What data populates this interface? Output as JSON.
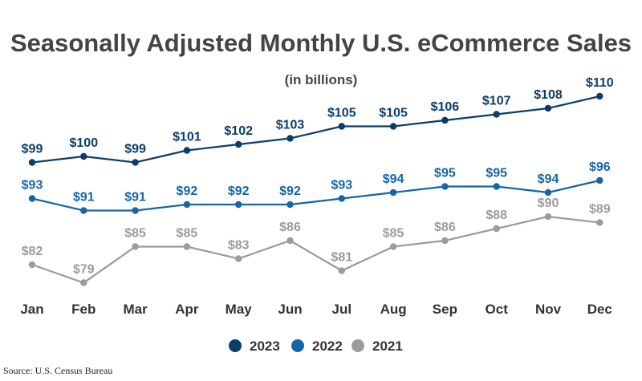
{
  "chart_data": {
    "type": "line",
    "title": "Seasonally Adjusted Monthly U.S. eCommerce Sales",
    "subtitle": "(in billions)",
    "categories": [
      "Jan",
      "Feb",
      "Mar",
      "Apr",
      "May",
      "Jun",
      "Jul",
      "Aug",
      "Sep",
      "Oct",
      "Nov",
      "Dec"
    ],
    "ylim": [
      74,
      114
    ],
    "grid": false,
    "legend_position": "bottom",
    "series": [
      {
        "name": "2023",
        "color": "#0b3d6b",
        "values": [
          99,
          100,
          99,
          101,
          102,
          103,
          105,
          105,
          106,
          107,
          108,
          110
        ],
        "labels": [
          "$99",
          "$100",
          "$99",
          "$101",
          "$102",
          "$103",
          "$105",
          "$105",
          "$106",
          "$107",
          "$108",
          "$110"
        ]
      },
      {
        "name": "2022",
        "color": "#1565a8",
        "values": [
          93,
          91,
          91,
          92,
          92,
          92,
          93,
          94,
          95,
          95,
          94,
          96
        ],
        "labels": [
          "$93",
          "$91",
          "$91",
          "$92",
          "$92",
          "$92",
          "$93",
          "$94",
          "$95",
          "$95",
          "$94",
          "$96"
        ]
      },
      {
        "name": "2021",
        "color": "#9b9b9b",
        "values": [
          82,
          79,
          85,
          85,
          83,
          86,
          81,
          85,
          86,
          88,
          90,
          89
        ],
        "labels": [
          "$82",
          "$79",
          "$85",
          "$85",
          "$83",
          "$86",
          "$81",
          "$85",
          "$86",
          "$88",
          "$90",
          "$89"
        ]
      }
    ]
  },
  "source": "Source: U.S. Census Bureau"
}
